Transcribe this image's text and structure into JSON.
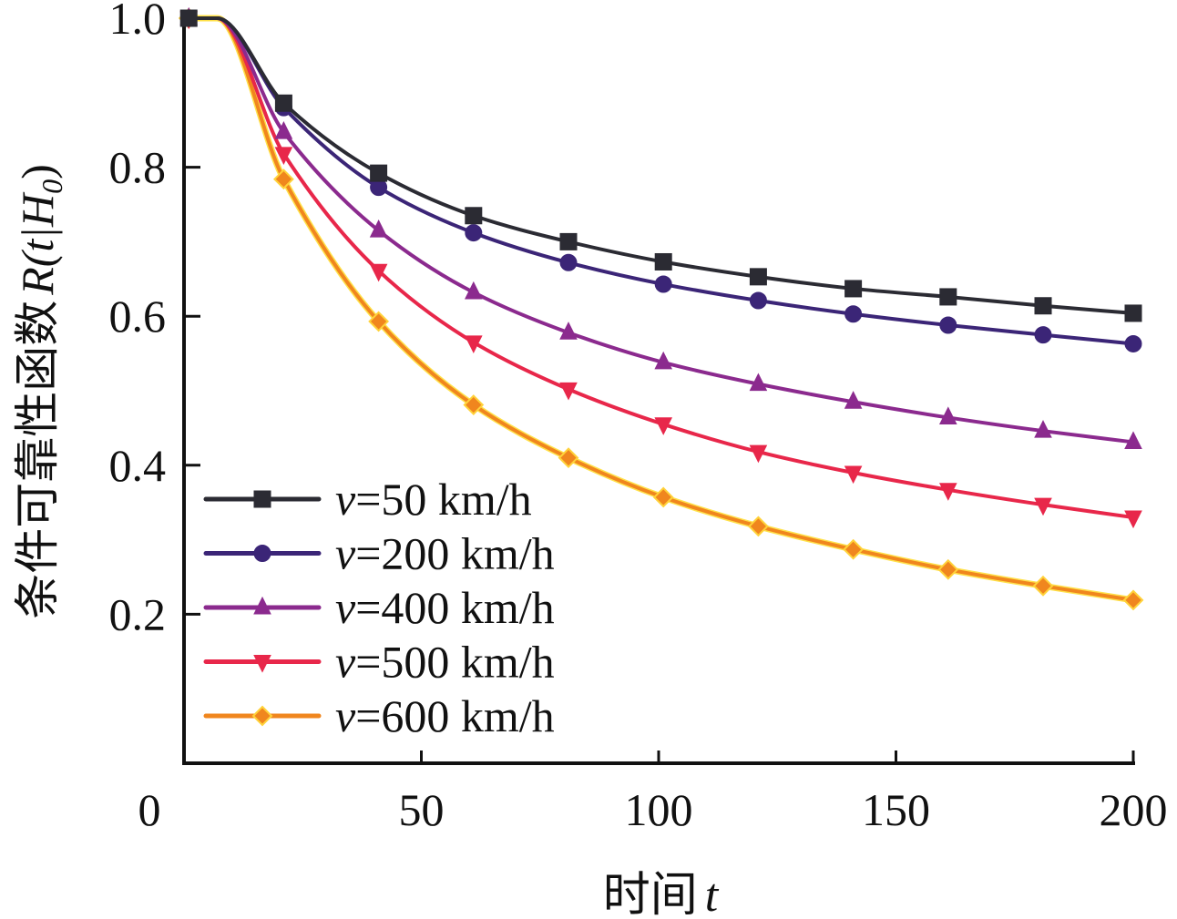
{
  "chart_data": {
    "type": "line",
    "title": "",
    "xlabel_text": "时间",
    "xlabel_var": "t",
    "ylabel_text": "条件可靠性函数",
    "ylabel_var": "R(t|H",
    "ylabel_sub": "0",
    "ylabel_close": ")",
    "xlim": [
      0,
      200
    ],
    "ylim": [
      0,
      1.0
    ],
    "xticks": [
      0,
      50,
      100,
      150,
      200
    ],
    "xtick_labels": [
      "0",
      "50",
      "100",
      "150",
      "200"
    ],
    "yticks": [
      0.2,
      0.4,
      0.6,
      0.8,
      1.0
    ],
    "ytick_labels": [
      "0.2",
      "0.4",
      "0.6",
      "0.8",
      "1.0"
    ],
    "grid": false,
    "legend_position": "bottom-left",
    "x": [
      1,
      7,
      21,
      41,
      61,
      81,
      101,
      121,
      141,
      161,
      181,
      200
    ],
    "marker_x": [
      1,
      21,
      41,
      61,
      81,
      101,
      121,
      141,
      161,
      181,
      200
    ],
    "series": [
      {
        "name": "v=50 km/h",
        "var": "v",
        "label": "=50 km/h",
        "color": "#2b2b33",
        "marker": "square",
        "values": [
          1.0,
          1.0,
          0.886,
          0.792,
          0.735,
          0.7,
          0.673,
          0.653,
          0.637,
          0.626,
          0.614,
          0.604
        ]
      },
      {
        "name": "v=200 km/h",
        "var": "v",
        "label": "=200 km/h",
        "color": "#3b2577",
        "marker": "circle",
        "values": [
          1.0,
          1.0,
          0.88,
          0.773,
          0.712,
          0.672,
          0.643,
          0.621,
          0.603,
          0.588,
          0.575,
          0.563
        ]
      },
      {
        "name": "v=400 km/h",
        "var": "v",
        "label": "=400 km/h",
        "color": "#8b2a8e",
        "marker": "triangle-up",
        "values": [
          1.0,
          1.0,
          0.847,
          0.715,
          0.632,
          0.578,
          0.538,
          0.509,
          0.485,
          0.464,
          0.446,
          0.431
        ]
      },
      {
        "name": "v=500 km/h",
        "var": "v",
        "label": "=500 km/h",
        "color": "#e8274a",
        "marker": "triangle-down",
        "values": [
          1.0,
          1.0,
          0.818,
          0.661,
          0.565,
          0.502,
          0.455,
          0.418,
          0.39,
          0.367,
          0.347,
          0.33
        ]
      },
      {
        "name": "v=600 km/h",
        "var": "v",
        "label": "=600 km/h",
        "color": "#f0861e",
        "marker": "diamond",
        "values": [
          1.0,
          1.0,
          0.784,
          0.593,
          0.481,
          0.41,
          0.357,
          0.318,
          0.287,
          0.26,
          0.238,
          0.219
        ]
      }
    ]
  }
}
